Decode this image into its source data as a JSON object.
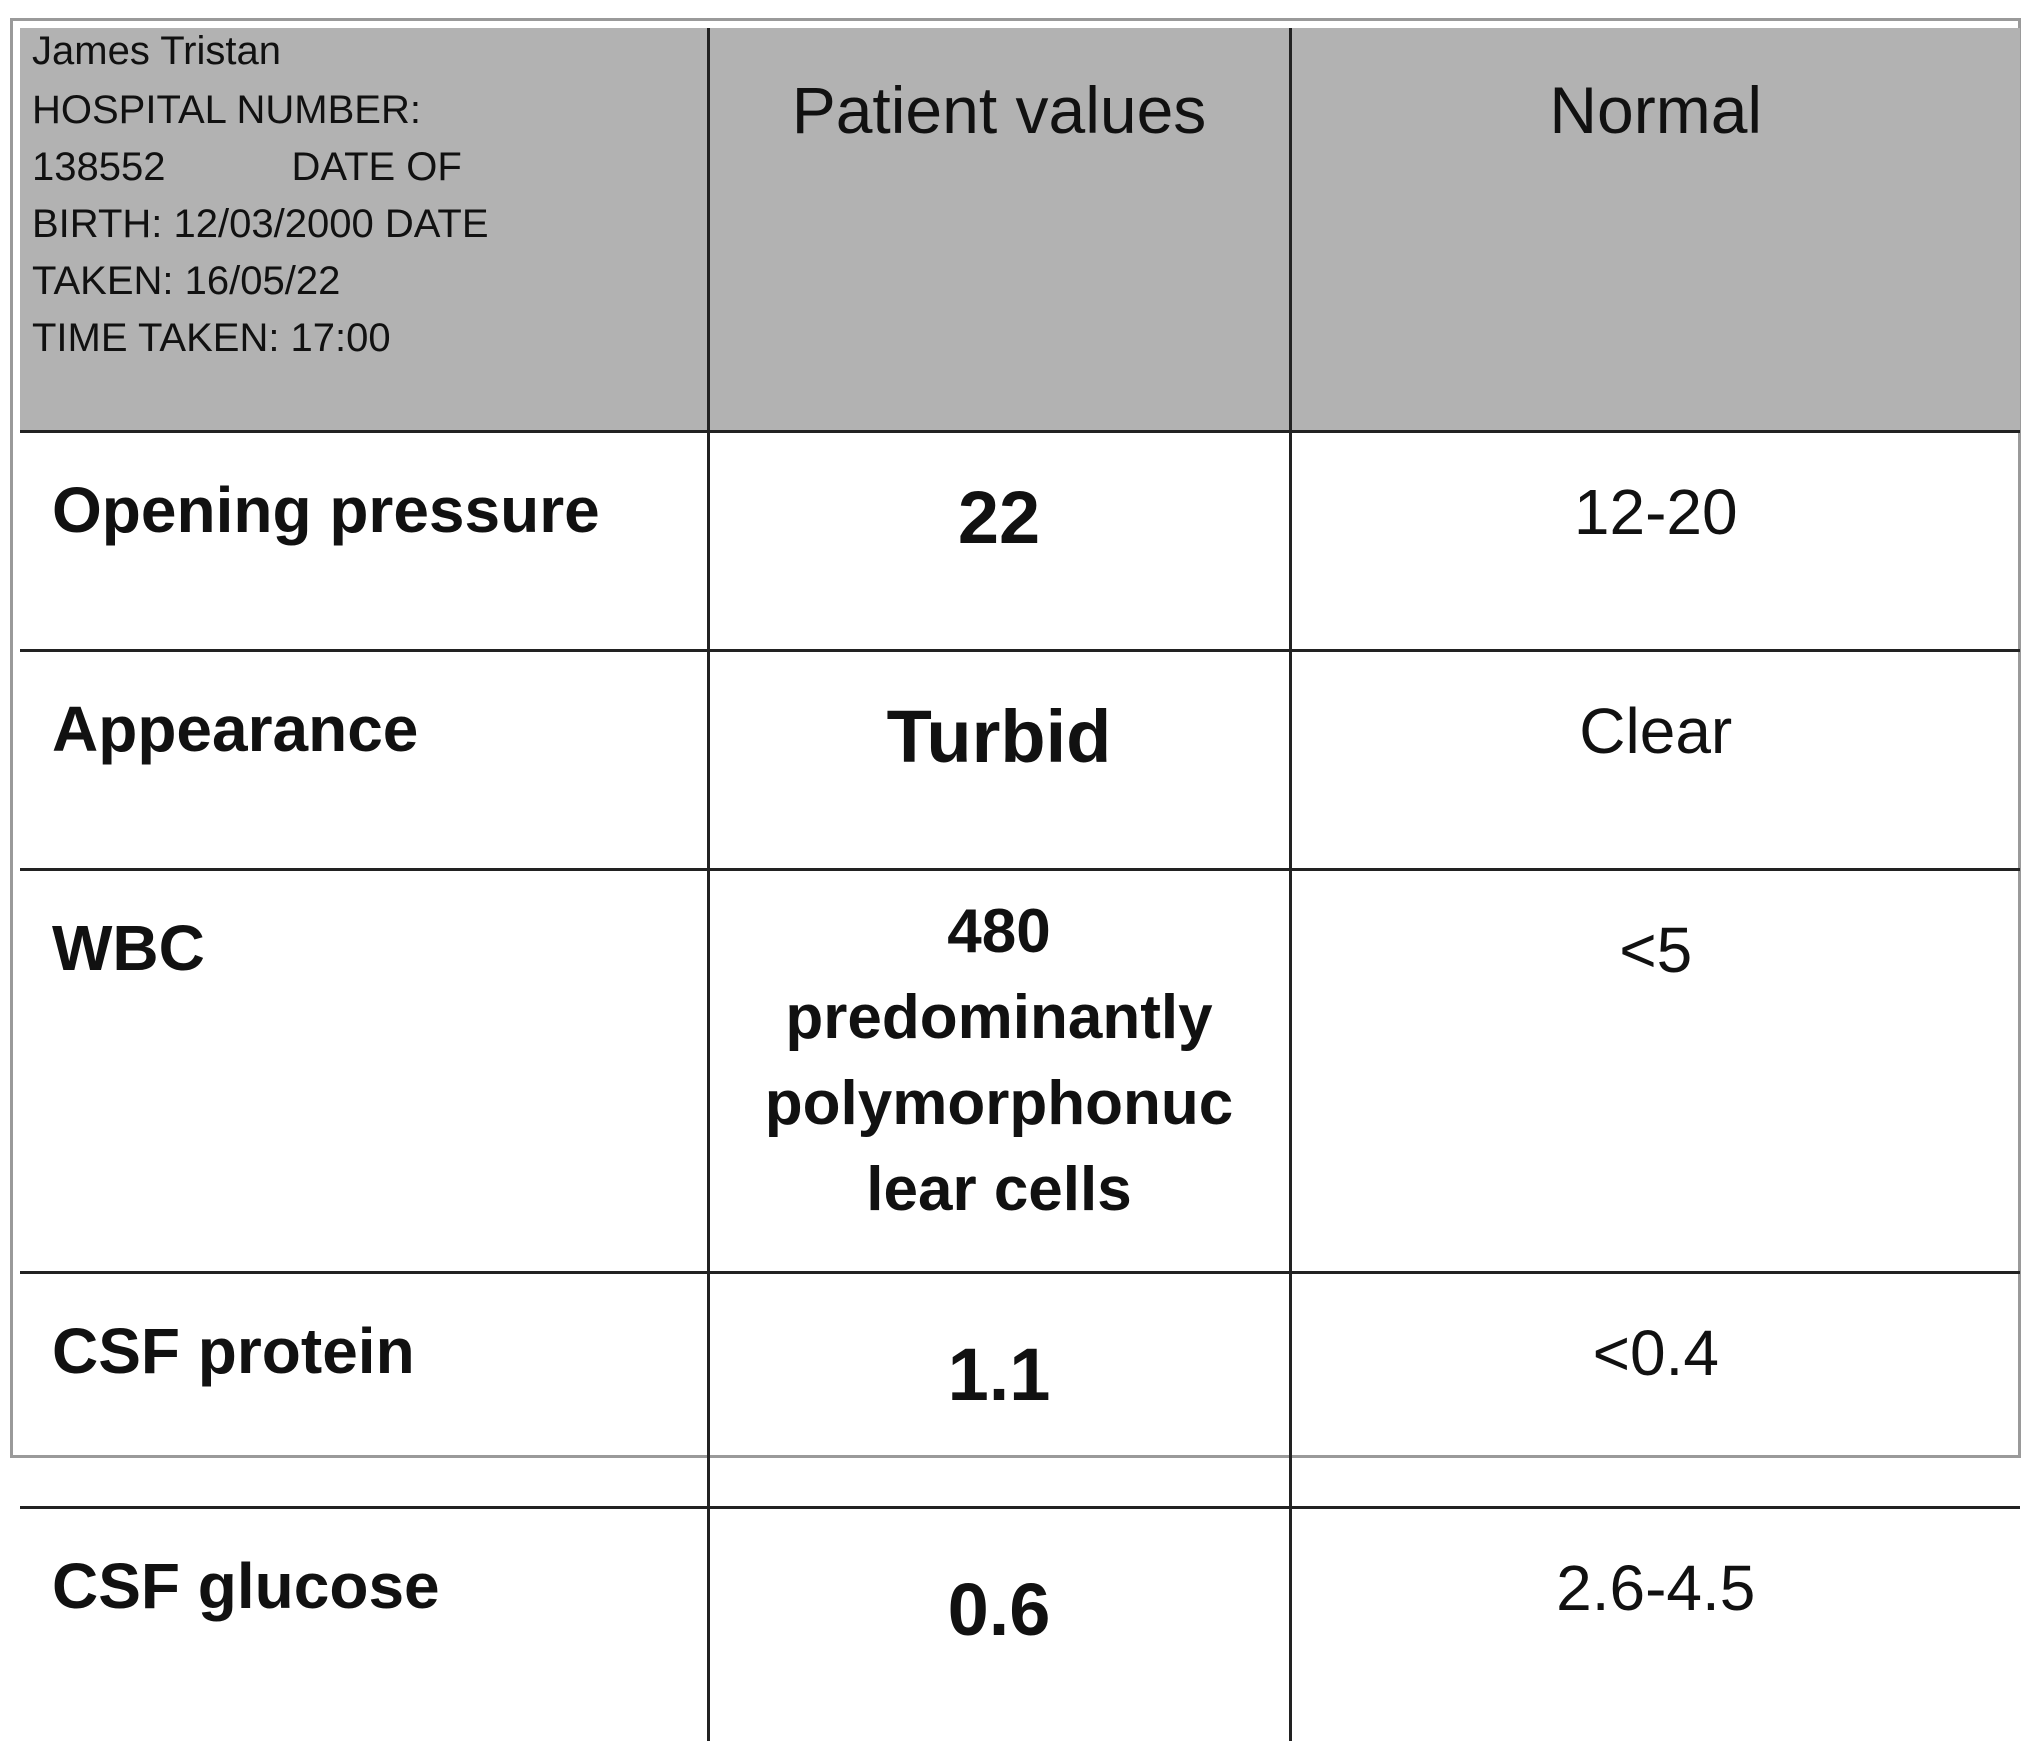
{
  "header": {
    "patient_name": "James Tristan",
    "hospital_number_label": "HOSPITAL NUMBER:",
    "hospital_number": "138552",
    "dob_label_start": "DATE OF",
    "dob_label_end_and_value": "BIRTH: 12/03/2000 DATE",
    "date_taken": "TAKEN: 16/05/22",
    "time_taken": "TIME TAKEN: 17:00",
    "col_patient": "Patient values",
    "col_normal": "Normal"
  },
  "rows": [
    {
      "parameter": "Opening pressure",
      "patient": "22",
      "normal": "12-20"
    },
    {
      "parameter": "Appearance",
      "patient": "Turbid",
      "normal": "Clear"
    },
    {
      "parameter": "WBC",
      "patient": "480 predominantly polymorphonuc lear cells",
      "normal": "<5"
    },
    {
      "parameter": "CSF protein",
      "patient": "1.1",
      "normal": "<0.4"
    },
    {
      "parameter": "CSF glucose",
      "patient": "0.6",
      "normal": "2.6-4.5"
    }
  ],
  "wbc_lines": [
    "480",
    "predominantly",
    "polymorphonuc",
    "lear cells"
  ]
}
